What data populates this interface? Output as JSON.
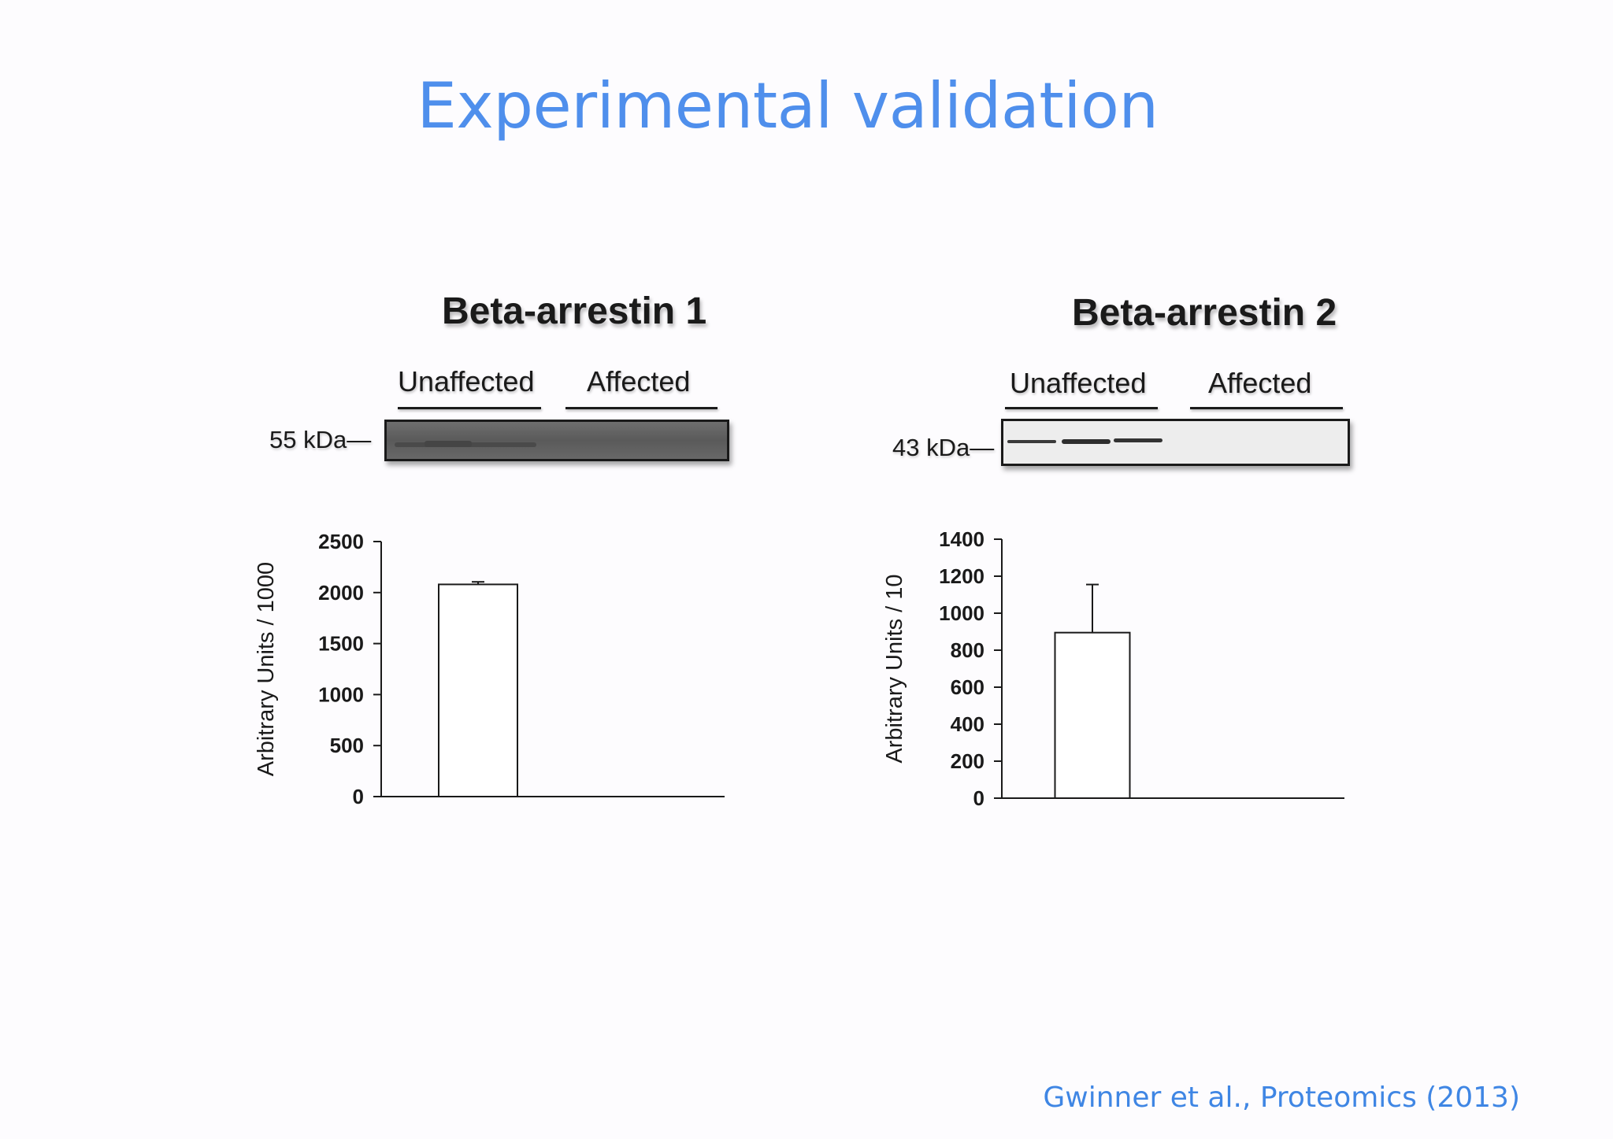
{
  "slide": {
    "title": "Experimental validation",
    "citation": "Gwinner et al., Proteomics (2013)"
  },
  "panels": [
    {
      "title": "Beta-arrestin 1",
      "lanes": [
        "Unaffected",
        "Affected"
      ],
      "marker": "55 kDa—",
      "blot_tone": "dark"
    },
    {
      "title": "Beta-arrestin 2",
      "lanes": [
        "Unaffected",
        "Affected"
      ],
      "marker": "43 kDa—",
      "blot_tone": "light"
    }
  ],
  "chart_data": [
    {
      "type": "bar",
      "title": "Beta-arrestin 1",
      "categories": [
        "Unaffected",
        "Affected"
      ],
      "values": [
        2080,
        0
      ],
      "error": [
        25,
        0
      ],
      "ylabel": "Arbitrary Units / 1000",
      "ylim": [
        0,
        2500
      ],
      "yticks": [
        0,
        500,
        1000,
        1500,
        2000,
        2500
      ],
      "grid": false
    },
    {
      "type": "bar",
      "title": "Beta-arrestin 2",
      "categories": [
        "Unaffected",
        "Affected"
      ],
      "values": [
        895,
        0
      ],
      "error": [
        260,
        0
      ],
      "ylabel": "Arbitrary Units / 10",
      "ylim": [
        0,
        1400
      ],
      "yticks": [
        0,
        200,
        400,
        600,
        800,
        1000,
        1200,
        1400
      ],
      "grid": false
    }
  ],
  "colors": {
    "title": "#4f8fec",
    "citation": "#3f86e4",
    "bar_fill": "#ffffff",
    "axis": "#1a1a1a"
  }
}
